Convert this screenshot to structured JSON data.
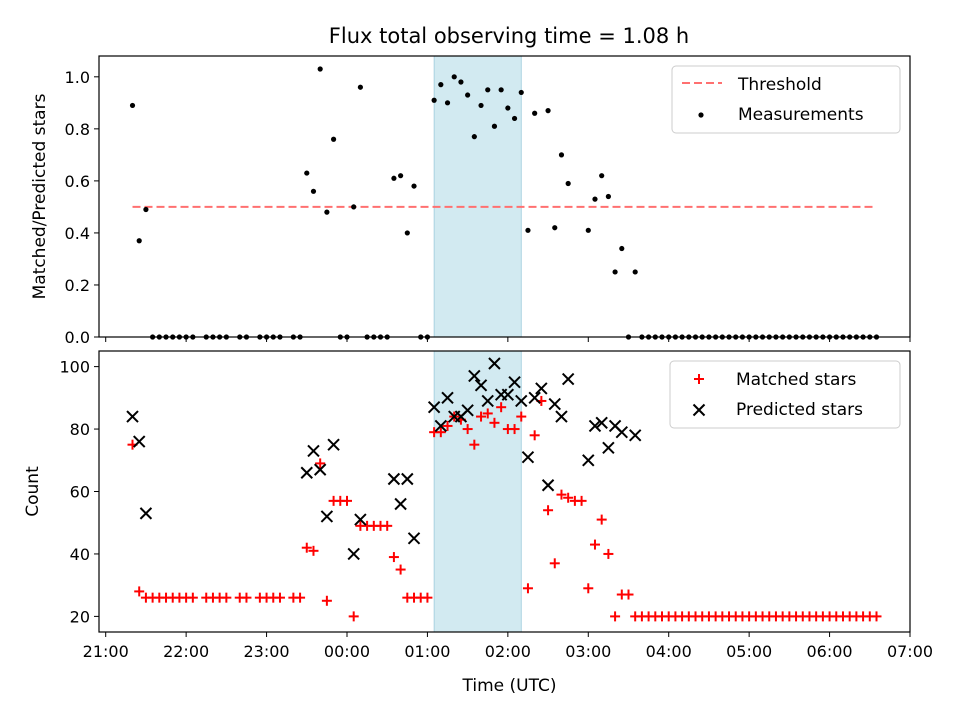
{
  "title": "Flux total observing time = 1.08 h",
  "colors": {
    "threshold": "#ff7070",
    "shade": "#add8e6",
    "measurements": "#000000",
    "matched": "#ff0000",
    "predicted": "#000000"
  },
  "chart_data": [
    {
      "type": "scatter",
      "ylabel": "Matched/Predicted stars",
      "ylim": [
        0,
        1.08
      ],
      "yticks": [
        0.0,
        0.2,
        0.4,
        0.6,
        0.8,
        1.0
      ],
      "ytick_labels": [
        "0.0",
        "0.2",
        "0.4",
        "0.6",
        "0.8",
        "1.0"
      ],
      "legend": {
        "placement": "top-right",
        "entries": [
          "Threshold",
          "Measurements"
        ]
      },
      "threshold": {
        "name": "Threshold",
        "value": 0.5,
        "x_range": [
          "21:20",
          "06:35"
        ]
      },
      "shaded_region": [
        "01:05",
        "02:10"
      ],
      "series": [
        {
          "name": "Measurements",
          "points": [
            [
              "21:20",
              0.89
            ],
            [
              "21:25",
              0.37
            ],
            [
              "21:30",
              0.49
            ],
            [
              "21:35",
              0.0
            ],
            [
              "21:40",
              0.0
            ],
            [
              "21:45",
              0.0
            ],
            [
              "21:50",
              0.0
            ],
            [
              "21:55",
              0.0
            ],
            [
              "22:00",
              0.0
            ],
            [
              "22:05",
              0.0
            ],
            [
              "22:15",
              0.0
            ],
            [
              "22:20",
              0.0
            ],
            [
              "22:25",
              0.0
            ],
            [
              "22:30",
              0.0
            ],
            [
              "22:40",
              0.0
            ],
            [
              "22:45",
              0.0
            ],
            [
              "22:55",
              0.0
            ],
            [
              "23:00",
              0.0
            ],
            [
              "23:05",
              0.0
            ],
            [
              "23:10",
              0.0
            ],
            [
              "23:20",
              0.0
            ],
            [
              "23:25",
              0.0
            ],
            [
              "23:30",
              0.63
            ],
            [
              "23:35",
              0.56
            ],
            [
              "23:40",
              1.03
            ],
            [
              "23:45",
              0.48
            ],
            [
              "23:50",
              0.76
            ],
            [
              "23:55",
              0.0
            ],
            [
              "00:00",
              0.0
            ],
            [
              "00:05",
              0.5
            ],
            [
              "00:10",
              0.96
            ],
            [
              "00:15",
              0.0
            ],
            [
              "00:20",
              0.0
            ],
            [
              "00:25",
              0.0
            ],
            [
              "00:30",
              0.0
            ],
            [
              "00:35",
              0.61
            ],
            [
              "00:40",
              0.62
            ],
            [
              "00:45",
              0.4
            ],
            [
              "00:50",
              0.58
            ],
            [
              "00:55",
              0.0
            ],
            [
              "01:00",
              0.0
            ],
            [
              "01:05",
              0.91
            ],
            [
              "01:10",
              0.97
            ],
            [
              "01:15",
              0.9
            ],
            [
              "01:20",
              1.0
            ],
            [
              "01:25",
              0.98
            ],
            [
              "01:30",
              0.93
            ],
            [
              "01:35",
              0.77
            ],
            [
              "01:40",
              0.89
            ],
            [
              "01:45",
              0.95
            ],
            [
              "01:50",
              0.81
            ],
            [
              "01:55",
              0.95
            ],
            [
              "02:00",
              0.88
            ],
            [
              "02:05",
              0.84
            ],
            [
              "02:10",
              0.94
            ],
            [
              "02:15",
              0.41
            ],
            [
              "02:20",
              0.86
            ],
            [
              "02:30",
              0.87
            ],
            [
              "02:35",
              0.42
            ],
            [
              "02:40",
              0.7
            ],
            [
              "02:45",
              0.59
            ],
            [
              "03:00",
              0.41
            ],
            [
              "03:05",
              0.53
            ],
            [
              "03:10",
              0.62
            ],
            [
              "03:15",
              0.54
            ],
            [
              "03:20",
              0.25
            ],
            [
              "03:25",
              0.34
            ],
            [
              "03:30",
              0.0
            ],
            [
              "03:35",
              0.25
            ],
            [
              "03:40",
              0.0
            ],
            [
              "03:45",
              0.0
            ],
            [
              "03:50",
              0.0
            ],
            [
              "03:55",
              0.0
            ],
            [
              "04:00",
              0.0
            ],
            [
              "04:05",
              0.0
            ],
            [
              "04:10",
              0.0
            ],
            [
              "04:15",
              0.0
            ],
            [
              "04:20",
              0.0
            ],
            [
              "04:25",
              0.0
            ],
            [
              "04:30",
              0.0
            ],
            [
              "04:35",
              0.0
            ],
            [
              "04:40",
              0.0
            ],
            [
              "04:45",
              0.0
            ],
            [
              "04:50",
              0.0
            ],
            [
              "04:55",
              0.0
            ],
            [
              "05:00",
              0.0
            ],
            [
              "05:05",
              0.0
            ],
            [
              "05:10",
              0.0
            ],
            [
              "05:15",
              0.0
            ],
            [
              "05:20",
              0.0
            ],
            [
              "05:25",
              0.0
            ],
            [
              "05:30",
              0.0
            ],
            [
              "05:35",
              0.0
            ],
            [
              "05:40",
              0.0
            ],
            [
              "05:45",
              0.0
            ],
            [
              "05:50",
              0.0
            ],
            [
              "05:55",
              0.0
            ],
            [
              "06:00",
              0.0
            ],
            [
              "06:05",
              0.0
            ],
            [
              "06:10",
              0.0
            ],
            [
              "06:15",
              0.0
            ],
            [
              "06:20",
              0.0
            ],
            [
              "06:25",
              0.0
            ],
            [
              "06:30",
              0.0
            ],
            [
              "06:35",
              0.0
            ]
          ]
        }
      ]
    },
    {
      "type": "scatter",
      "xlabel": "Time (UTC)",
      "ylabel": "Count",
      "ylim": [
        15,
        105
      ],
      "yticks": [
        20,
        40,
        60,
        80,
        100
      ],
      "ytick_labels": [
        "20",
        "40",
        "60",
        "80",
        "100"
      ],
      "xlim": [
        "20:55",
        "07:00"
      ],
      "xticks": [
        "21:00",
        "22:00",
        "23:00",
        "00:00",
        "01:00",
        "02:00",
        "03:00",
        "04:00",
        "05:00",
        "06:00",
        "07:00"
      ],
      "legend": {
        "placement": "top-right",
        "entries": [
          "Matched stars",
          "Predicted stars"
        ]
      },
      "shaded_region": [
        "01:05",
        "02:10"
      ],
      "series": [
        {
          "name": "Matched stars",
          "points": [
            [
              "21:20",
              75
            ],
            [
              "21:25",
              28
            ],
            [
              "21:30",
              26
            ],
            [
              "21:35",
              26
            ],
            [
              "21:40",
              26
            ],
            [
              "21:45",
              26
            ],
            [
              "21:50",
              26
            ],
            [
              "21:55",
              26
            ],
            [
              "22:00",
              26
            ],
            [
              "22:05",
              26
            ],
            [
              "22:15",
              26
            ],
            [
              "22:20",
              26
            ],
            [
              "22:25",
              26
            ],
            [
              "22:30",
              26
            ],
            [
              "22:40",
              26
            ],
            [
              "22:45",
              26
            ],
            [
              "22:55",
              26
            ],
            [
              "23:00",
              26
            ],
            [
              "23:05",
              26
            ],
            [
              "23:10",
              26
            ],
            [
              "23:20",
              26
            ],
            [
              "23:25",
              26
            ],
            [
              "23:30",
              42
            ],
            [
              "23:35",
              41
            ],
            [
              "23:40",
              69
            ],
            [
              "23:45",
              25
            ],
            [
              "23:50",
              57
            ],
            [
              "23:55",
              57
            ],
            [
              "00:00",
              57
            ],
            [
              "00:05",
              20
            ],
            [
              "00:10",
              49
            ],
            [
              "00:15",
              49
            ],
            [
              "00:20",
              49
            ],
            [
              "00:25",
              49
            ],
            [
              "00:30",
              49
            ],
            [
              "00:35",
              39
            ],
            [
              "00:40",
              35
            ],
            [
              "00:45",
              26
            ],
            [
              "00:50",
              26
            ],
            [
              "00:55",
              26
            ],
            [
              "01:00",
              26
            ],
            [
              "01:05",
              79
            ],
            [
              "01:10",
              79
            ],
            [
              "01:15",
              81
            ],
            [
              "01:20",
              84
            ],
            [
              "01:25",
              83
            ],
            [
              "01:30",
              80
            ],
            [
              "01:35",
              75
            ],
            [
              "01:40",
              84
            ],
            [
              "01:45",
              85
            ],
            [
              "01:50",
              82
            ],
            [
              "01:55",
              87
            ],
            [
              "02:00",
              80
            ],
            [
              "02:05",
              80
            ],
            [
              "02:10",
              84
            ],
            [
              "02:15",
              29
            ],
            [
              "02:20",
              78
            ],
            [
              "02:25",
              89
            ],
            [
              "02:30",
              54
            ],
            [
              "02:35",
              37
            ],
            [
              "02:40",
              59
            ],
            [
              "02:45",
              58
            ],
            [
              "02:50",
              57
            ],
            [
              "02:55",
              57
            ],
            [
              "03:00",
              29
            ],
            [
              "03:05",
              43
            ],
            [
              "03:10",
              51
            ],
            [
              "03:15",
              40
            ],
            [
              "03:20",
              20
            ],
            [
              "03:25",
              27
            ],
            [
              "03:30",
              27
            ],
            [
              "03:35",
              20
            ],
            [
              "03:40",
              20
            ],
            [
              "03:45",
              20
            ],
            [
              "03:50",
              20
            ],
            [
              "03:55",
              20
            ],
            [
              "04:00",
              20
            ],
            [
              "04:05",
              20
            ],
            [
              "04:10",
              20
            ],
            [
              "04:15",
              20
            ],
            [
              "04:20",
              20
            ],
            [
              "04:25",
              20
            ],
            [
              "04:30",
              20
            ],
            [
              "04:35",
              20
            ],
            [
              "04:40",
              20
            ],
            [
              "04:45",
              20
            ],
            [
              "04:50",
              20
            ],
            [
              "04:55",
              20
            ],
            [
              "05:00",
              20
            ],
            [
              "05:05",
              20
            ],
            [
              "05:10",
              20
            ],
            [
              "05:15",
              20
            ],
            [
              "05:20",
              20
            ],
            [
              "05:25",
              20
            ],
            [
              "05:30",
              20
            ],
            [
              "05:35",
              20
            ],
            [
              "05:40",
              20
            ],
            [
              "05:45",
              20
            ],
            [
              "05:50",
              20
            ],
            [
              "05:55",
              20
            ],
            [
              "06:00",
              20
            ],
            [
              "06:05",
              20
            ],
            [
              "06:10",
              20
            ],
            [
              "06:15",
              20
            ],
            [
              "06:20",
              20
            ],
            [
              "06:25",
              20
            ],
            [
              "06:30",
              20
            ],
            [
              "06:35",
              20
            ]
          ]
        },
        {
          "name": "Predicted stars",
          "points": [
            [
              "21:20",
              84
            ],
            [
              "21:25",
              76
            ],
            [
              "21:30",
              53
            ],
            [
              "23:30",
              66
            ],
            [
              "23:35",
              73
            ],
            [
              "23:40",
              67
            ],
            [
              "23:45",
              52
            ],
            [
              "23:50",
              75
            ],
            [
              "00:05",
              40
            ],
            [
              "00:10",
              51
            ],
            [
              "00:35",
              64
            ],
            [
              "00:40",
              56
            ],
            [
              "00:45",
              64
            ],
            [
              "00:50",
              45
            ],
            [
              "01:05",
              87
            ],
            [
              "01:10",
              81
            ],
            [
              "01:15",
              90
            ],
            [
              "01:20",
              84
            ],
            [
              "01:25",
              84
            ],
            [
              "01:30",
              86
            ],
            [
              "01:35",
              97
            ],
            [
              "01:40",
              94
            ],
            [
              "01:45",
              89
            ],
            [
              "01:50",
              101
            ],
            [
              "01:55",
              91
            ],
            [
              "02:00",
              91
            ],
            [
              "02:05",
              95
            ],
            [
              "02:10",
              89
            ],
            [
              "02:15",
              71
            ],
            [
              "02:20",
              90
            ],
            [
              "02:25",
              93
            ],
            [
              "02:30",
              62
            ],
            [
              "02:35",
              88
            ],
            [
              "02:40",
              84
            ],
            [
              "02:45",
              96
            ],
            [
              "03:00",
              70
            ],
            [
              "03:05",
              81
            ],
            [
              "03:10",
              82
            ],
            [
              "03:15",
              74
            ],
            [
              "03:20",
              81
            ],
            [
              "03:25",
              79
            ],
            [
              "03:35",
              78
            ]
          ]
        }
      ]
    }
  ]
}
